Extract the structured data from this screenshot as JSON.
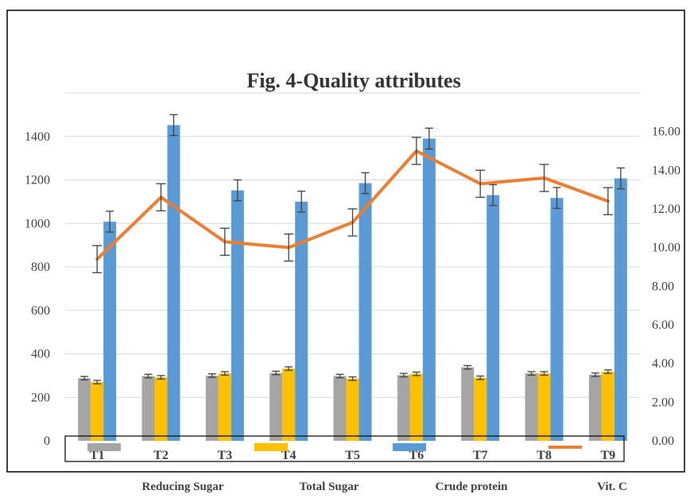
{
  "chart_data": {
    "type": "bar",
    "title": "Fig. 4-Quality attributes",
    "categories": [
      "T1",
      "T2",
      "T3",
      "T4",
      "T5",
      "T6",
      "T7",
      "T8",
      "T9"
    ],
    "ylim": [
      0,
      1600
    ],
    "y_ticks": [
      "0",
      "200",
      "400",
      "600",
      "800",
      "1000",
      "1200",
      "1400"
    ],
    "y2lim": [
      0,
      18
    ],
    "y2_ticks": [
      "0.00",
      "2.00",
      "4.00",
      "6.00",
      "8.00",
      "10.00",
      "12.00",
      "14.00",
      "16.00"
    ],
    "grid": true,
    "legend_position": "bottom",
    "series": [
      {
        "name": "Reducing Sugar",
        "kind": "bar",
        "axis": "left",
        "color": "#a5a5a5",
        "values": [
          288,
          298,
          300,
          312,
          298,
          302,
          338,
          310,
          304
        ],
        "errors": [
          8,
          8,
          8,
          8,
          8,
          8,
          8,
          8,
          8
        ]
      },
      {
        "name": "Total Sugar",
        "kind": "bar",
        "axis": "left",
        "color": "#ffc000",
        "values": [
          270,
          292,
          310,
          332,
          286,
          308,
          290,
          310,
          318
        ],
        "errors": [
          8,
          8,
          8,
          8,
          8,
          8,
          8,
          8,
          8
        ]
      },
      {
        "name": "Crude protein",
        "kind": "bar",
        "axis": "left",
        "color": "#5b9bd5",
        "values": [
          1008,
          1452,
          1152,
          1100,
          1185,
          1390,
          1130,
          1117,
          1207
        ],
        "errors": [
          48,
          48,
          48,
          48,
          48,
          48,
          48,
          48,
          48
        ]
      },
      {
        "name": "Vit. C",
        "kind": "line",
        "axis": "right",
        "color": "#ed7d31",
        "values": [
          9.4,
          12.6,
          10.3,
          10.0,
          11.3,
          15.0,
          13.3,
          13.6,
          12.4
        ],
        "errors": [
          0.7,
          0.7,
          0.7,
          0.7,
          0.7,
          0.7,
          0.7,
          0.7,
          0.7
        ]
      }
    ]
  }
}
